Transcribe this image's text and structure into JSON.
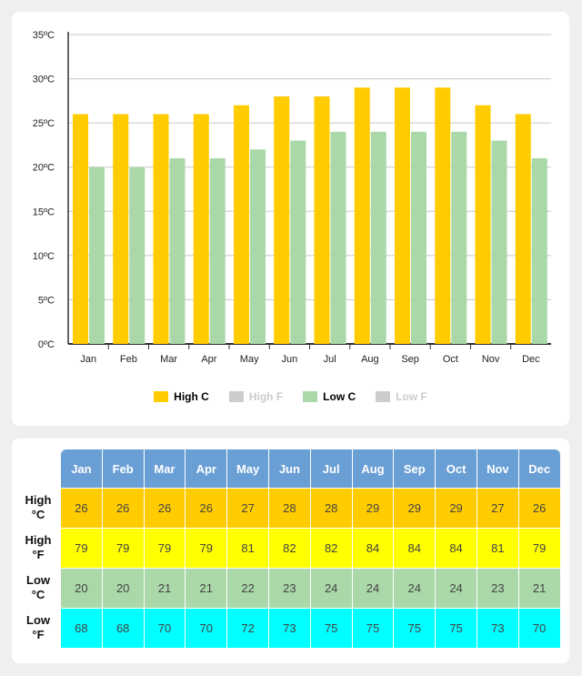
{
  "chart_data": {
    "type": "bar",
    "categories": [
      "Jan",
      "Feb",
      "Mar",
      "Apr",
      "May",
      "Jun",
      "Jul",
      "Aug",
      "Sep",
      "Oct",
      "Nov",
      "Dec"
    ],
    "series": [
      {
        "name": "High C",
        "values": [
          26,
          26,
          26,
          26,
          27,
          28,
          28,
          29,
          29,
          29,
          27,
          26
        ],
        "color": "#ffcc00",
        "visible": true
      },
      {
        "name": "High F",
        "values": [
          79,
          79,
          79,
          79,
          81,
          82,
          82,
          84,
          84,
          84,
          81,
          79
        ],
        "color": "#cccccc",
        "visible": false
      },
      {
        "name": "Low C",
        "values": [
          20,
          20,
          21,
          21,
          22,
          23,
          24,
          24,
          24,
          24,
          23,
          21
        ],
        "color": "#aad8a8",
        "visible": true
      },
      {
        "name": "Low F",
        "values": [
          68,
          68,
          70,
          70,
          72,
          73,
          75,
          75,
          75,
          75,
          73,
          70
        ],
        "color": "#cccccc",
        "visible": false
      }
    ],
    "ylim": [
      0,
      35
    ],
    "yticks": [
      "0ºC",
      "5ºC",
      "10ºC",
      "15ºC",
      "20ºC",
      "25ºC",
      "30ºC",
      "35ºC"
    ],
    "grid": true,
    "legend_position": "bottom"
  },
  "table": {
    "months": [
      "Jan",
      "Feb",
      "Mar",
      "Apr",
      "May",
      "Jun",
      "Jul",
      "Aug",
      "Sep",
      "Oct",
      "Nov",
      "Dec"
    ],
    "rows": [
      {
        "label_line1": "High",
        "label_line2": "°C",
        "color": "#ffcc00",
        "values": [
          "26",
          "26",
          "26",
          "26",
          "27",
          "28",
          "28",
          "29",
          "29",
          "29",
          "27",
          "26"
        ]
      },
      {
        "label_line1": "High",
        "label_line2": "°F",
        "color": "#ffff00",
        "values": [
          "79",
          "79",
          "79",
          "79",
          "81",
          "82",
          "82",
          "84",
          "84",
          "84",
          "81",
          "79"
        ]
      },
      {
        "label_line1": "Low",
        "label_line2": "°C",
        "color": "#aad8a8",
        "values": [
          "20",
          "20",
          "21",
          "21",
          "22",
          "23",
          "24",
          "24",
          "24",
          "24",
          "23",
          "21"
        ]
      },
      {
        "label_line1": "Low",
        "label_line2": "°F",
        "color": "#00ffff",
        "values": [
          "68",
          "68",
          "70",
          "70",
          "72",
          "73",
          "75",
          "75",
          "75",
          "75",
          "73",
          "70"
        ]
      }
    ]
  }
}
